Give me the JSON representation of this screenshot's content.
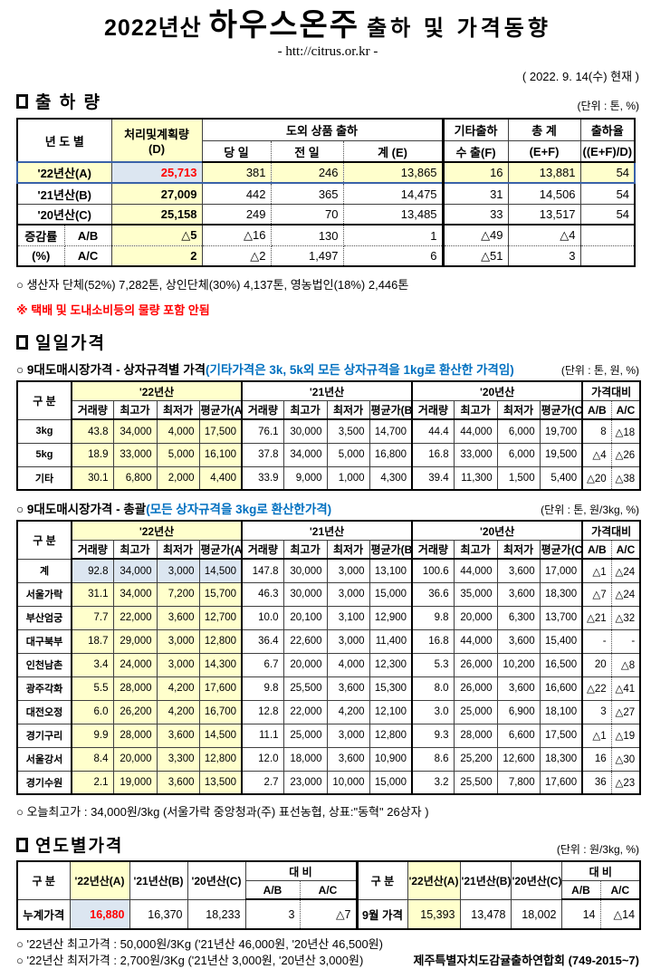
{
  "page": {
    "title_prefix": "2022년산",
    "title_main": "하우스온주",
    "title_suffix": "출하 및 가격동향",
    "subtitle": "- htt://citrus.or.kr -",
    "as_of": "( 2022. 9. 14(수) 현재 )"
  },
  "colors": {
    "highlight_yellow": "#FFFFCC",
    "highlight_blue": "#DCE6F1",
    "accent_red": "#FF0000",
    "accent_blue": "#0070C0",
    "row_border_blue": "#3A62A8"
  },
  "shipment": {
    "heading": "출 하 량",
    "unit": "(단위 : 톤, %)",
    "headers": {
      "col_year": "년 도 별",
      "col_plan1": "처리및계획량",
      "col_plan2": "(D)",
      "group_out": "도외 상품 출하",
      "sub_today": "당 일",
      "sub_prev": "전 일",
      "sub_sum": "계 (E)",
      "col_etc1": "기타출하",
      "col_etc2": "수 출(F)",
      "col_tot1": "총  계",
      "col_tot2": "(E+F)",
      "col_rate1": "출하율",
      "col_rate2": "((E+F)/D)"
    },
    "rows": [
      {
        "label": "'22년산(A)",
        "style": "highlight",
        "cells": [
          "25,713",
          "381",
          "246",
          "13,865",
          "16",
          "13,881",
          "54"
        ]
      },
      {
        "label": "'21년산(B)",
        "style": "",
        "cells": [
          "27,009",
          "442",
          "365",
          "14,475",
          "31",
          "14,506",
          "54"
        ]
      },
      {
        "label": "'20년산(C)",
        "style": "",
        "cells": [
          "25,158",
          "249",
          "70",
          "13,485",
          "33",
          "13,517",
          "54"
        ]
      }
    ],
    "change_rows": [
      {
        "label1": "증감률",
        "label2": "A/B",
        "cells": [
          "△5",
          "△16",
          "130",
          "1",
          "△49",
          "△4",
          ""
        ]
      },
      {
        "label1": "(%)",
        "label2": "A/C",
        "cells": [
          "2",
          "△2",
          "1,497",
          "6",
          "△51",
          "3",
          ""
        ]
      }
    ],
    "note": "○ 생산자 단체(52%)  7,282톤,    상인단체(30%)  4,137톤,   영농법인(18%)   2,446톤",
    "warning": "※ 택배 및 도내소비등의 물량 포함 안됨"
  },
  "daily": {
    "heading": "일일가격",
    "box_title": "○ 9대도매시장가격 - 상자규격별 가격",
    "box_title_paren": "(기타가격은 3k, 5k외 모든 상자규격을 1kg로 환산한 가격임)",
    "box_unit": "(단위 : 톤,  원, %)",
    "sum_title": "○ 9대도매시장가격 - 총괄",
    "sum_title_paren": "(모든 상자규격을 3kg로 환산한가격)",
    "sum_unit": "(단위 : 톤, 원/3kg, %)",
    "col_label": "구  분",
    "groups": [
      "'22년산",
      "'21년산",
      "'20년산",
      "가격대비"
    ],
    "subheads": [
      "거래량",
      "최고가",
      "최저가",
      "평균가(A)",
      "거래량",
      "최고가",
      "최저가",
      "평균가(B)",
      "거래량",
      "최고가",
      "최저가",
      "평균가(C)",
      "A/B",
      "A/C"
    ],
    "box_rows": [
      {
        "label": "3kg",
        "cells": [
          "43.8",
          "34,000",
          "4,000",
          "17,500",
          "76.1",
          "30,000",
          "3,500",
          "14,700",
          "44.4",
          "44,000",
          "6,000",
          "19,700",
          "8",
          "△18"
        ]
      },
      {
        "label": "5kg",
        "cells": [
          "18.9",
          "33,000",
          "5,000",
          "16,100",
          "37.8",
          "34,000",
          "5,000",
          "16,800",
          "16.8",
          "33,000",
          "6,000",
          "19,500",
          "△4",
          "△26"
        ]
      },
      {
        "label": "기타",
        "cells": [
          "30.1",
          "6,800",
          "2,000",
          "4,400",
          "33.9",
          "9,000",
          "1,000",
          "4,300",
          "39.4",
          "11,300",
          "1,500",
          "5,400",
          "△20",
          "△38"
        ]
      }
    ],
    "sum_rows": [
      {
        "label": "계",
        "style": "blue",
        "cells": [
          "92.8",
          "34,000",
          "3,000",
          "14,500",
          "147.8",
          "30,000",
          "3,000",
          "13,100",
          "100.6",
          "44,000",
          "3,600",
          "17,000",
          "△1",
          "△24"
        ]
      },
      {
        "label": "서울가락",
        "style": "",
        "cells": [
          "31.1",
          "34,000",
          "7,200",
          "15,700",
          "46.3",
          "30,000",
          "3,000",
          "15,000",
          "36.6",
          "35,000",
          "3,600",
          "18,300",
          "△7",
          "△24"
        ]
      },
      {
        "label": "부산엄궁",
        "style": "",
        "cells": [
          "7.7",
          "22,000",
          "3,600",
          "12,700",
          "10.0",
          "20,100",
          "3,100",
          "12,900",
          "9.8",
          "20,000",
          "6,300",
          "13,700",
          "△21",
          "△32"
        ]
      },
      {
        "label": "대구북부",
        "style": "",
        "cells": [
          "18.7",
          "29,000",
          "3,000",
          "12,800",
          "36.4",
          "22,600",
          "3,000",
          "11,400",
          "16.8",
          "44,000",
          "3,600",
          "15,400",
          "-",
          "-"
        ]
      },
      {
        "label": "인천남촌",
        "style": "",
        "cells": [
          "3.4",
          "24,000",
          "3,000",
          "14,300",
          "6.7",
          "20,000",
          "4,000",
          "12,300",
          "5.3",
          "26,000",
          "10,200",
          "16,500",
          "20",
          "△8"
        ]
      },
      {
        "label": "광주각화",
        "style": "",
        "cells": [
          "5.5",
          "28,000",
          "4,200",
          "17,600",
          "9.8",
          "25,500",
          "3,600",
          "15,300",
          "8.0",
          "26,000",
          "3,600",
          "16,600",
          "△22",
          "△41"
        ]
      },
      {
        "label": "대전오정",
        "style": "",
        "cells": [
          "6.0",
          "26,200",
          "4,200",
          "16,700",
          "12.8",
          "22,000",
          "4,200",
          "12,100",
          "3.0",
          "25,000",
          "6,900",
          "18,100",
          "3",
          "△27"
        ]
      },
      {
        "label": "경기구리",
        "style": "",
        "cells": [
          "9.9",
          "28,000",
          "3,600",
          "14,500",
          "11.1",
          "25,000",
          "3,000",
          "12,800",
          "9.3",
          "28,000",
          "6,600",
          "17,500",
          "△1",
          "△19"
        ]
      },
      {
        "label": "서울강서",
        "style": "",
        "cells": [
          "8.4",
          "20,000",
          "3,300",
          "12,800",
          "12.0",
          "18,000",
          "3,600",
          "10,900",
          "8.6",
          "25,200",
          "12,600",
          "18,300",
          "16",
          "△30"
        ]
      },
      {
        "label": "경기수원",
        "style": "",
        "cells": [
          "2.1",
          "19,000",
          "3,600",
          "13,500",
          "2.7",
          "23,000",
          "10,000",
          "15,000",
          "3.2",
          "25,500",
          "7,800",
          "17,600",
          "36",
          "△23"
        ]
      }
    ],
    "sum_note": "○ 오늘최고가 : 34,000원/3kg (서울가락  중앙청과(주)   표선농협,   상표:\"동혁\"  26상자 )"
  },
  "yearly": {
    "heading": "연도별가격",
    "unit": "(단위 : 원/3kg, %)",
    "col_label": "구   분",
    "col_y22": "'22년산(A)",
    "col_y21": "'21년산(B)",
    "col_y20": "'20년산(C)",
    "col_cmp": "대   비",
    "col_ab": "A/B",
    "col_ac": "A/C",
    "left_row": {
      "label": "누계가격",
      "cells": [
        "16,880",
        "16,370",
        "18,233",
        "3",
        "△7"
      ]
    },
    "right_row": {
      "label": "9월 가격",
      "cells": [
        "15,393",
        "13,478",
        "18,002",
        "14",
        "△14"
      ]
    },
    "note_high": "○ '22년산 최고가격 : 50,000원/3Kg ('21년산 46,000원, '20년산 46,500원)",
    "note_low": "○ '22년산 최저가격 :  2,700원/3Kg ('21년산  3,000원, '20년산  3,000원)",
    "org": "제주특별자치도감귤출하연합회 (749-2015~7)"
  }
}
